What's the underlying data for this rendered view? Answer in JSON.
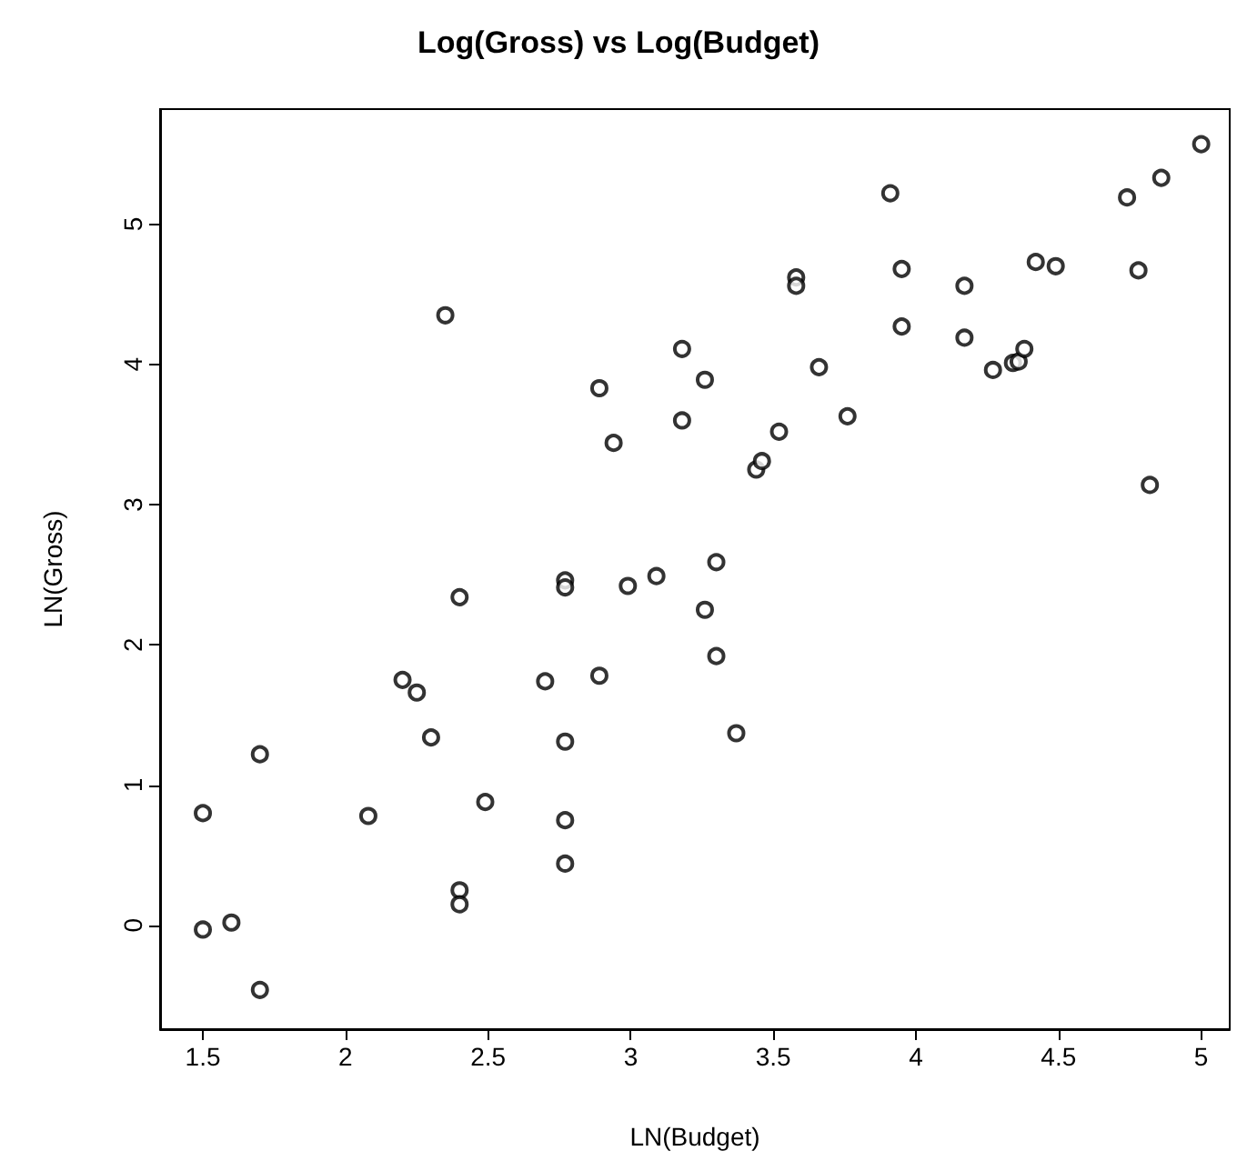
{
  "chart_data": {
    "type": "scatter",
    "title": "Log(Gross) vs Log(Budget)",
    "xlabel": "LN(Budget)",
    "ylabel": "LN(Gross)",
    "x": [
      1.5,
      1.5,
      1.6,
      1.7,
      1.7,
      2.08,
      2.2,
      2.25,
      2.3,
      2.35,
      2.4,
      2.4,
      2.4,
      2.49,
      2.7,
      2.77,
      2.77,
      2.77,
      2.77,
      2.77,
      2.89,
      2.89,
      2.94,
      2.99,
      3.09,
      3.18,
      3.18,
      3.26,
      3.26,
      3.3,
      3.3,
      3.37,
      3.44,
      3.46,
      3.52,
      3.58,
      3.58,
      3.66,
      3.76,
      3.91,
      3.95,
      3.95,
      4.17,
      4.17,
      4.27,
      4.34,
      4.36,
      4.38,
      4.42,
      4.49,
      4.74,
      4.78,
      4.82,
      4.86,
      5.0
    ],
    "values": [
      -0.03,
      0.8,
      0.02,
      -0.46,
      1.22,
      0.78,
      1.75,
      1.66,
      1.34,
      4.35,
      0.25,
      0.15,
      2.34,
      0.88,
      1.74,
      2.46,
      2.41,
      1.31,
      0.75,
      0.44,
      1.78,
      3.83,
      3.44,
      2.42,
      2.49,
      4.11,
      3.6,
      3.89,
      2.25,
      2.59,
      1.92,
      1.37,
      3.25,
      3.31,
      3.52,
      4.62,
      4.56,
      3.98,
      3.63,
      5.22,
      4.68,
      4.27,
      4.56,
      4.19,
      3.96,
      4.01,
      4.02,
      4.11,
      4.73,
      4.7,
      5.19,
      4.67,
      3.14,
      5.33,
      5.57
    ],
    "color": "#000000",
    "marker": "circle",
    "xlim": [
      1.35,
      5.1
    ],
    "xticks": [
      1.5,
      2.0,
      2.5,
      3.0,
      3.5,
      4.0,
      4.5,
      5.0
    ],
    "ylim": [
      -0.74,
      5.82
    ],
    "yticks": [
      0,
      1,
      2,
      3,
      4,
      5
    ]
  }
}
